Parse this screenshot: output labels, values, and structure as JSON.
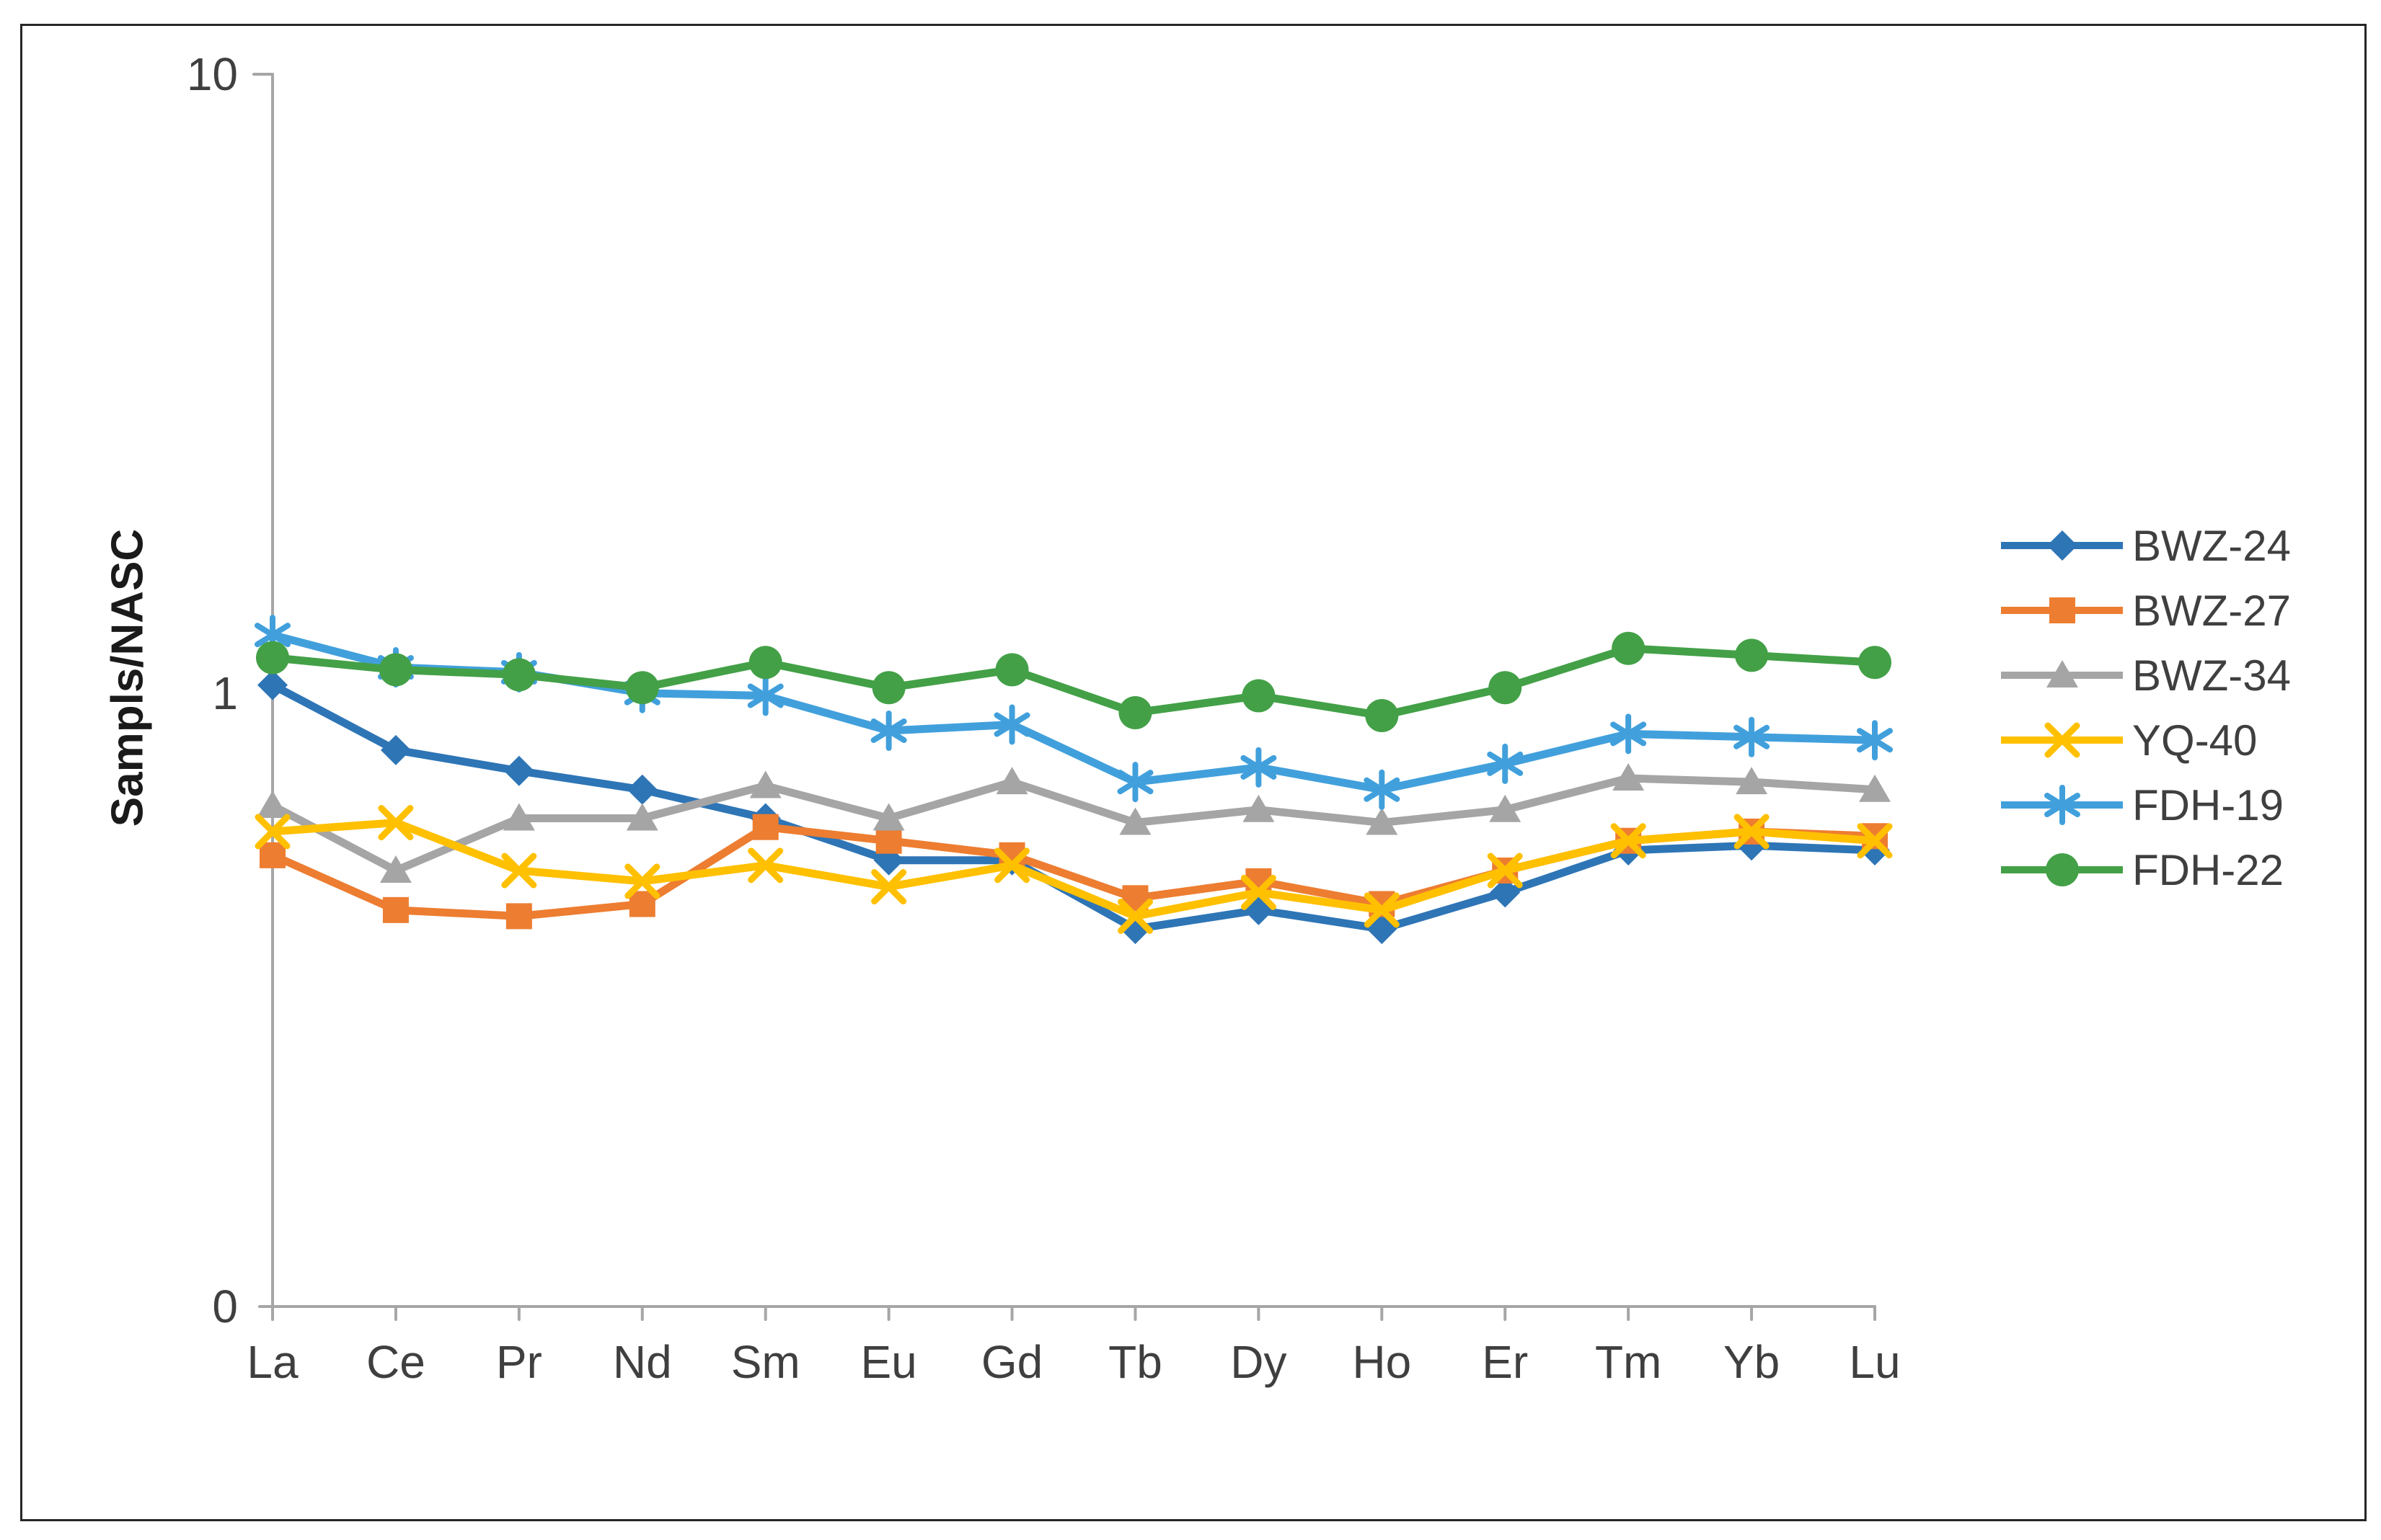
{
  "figure": {
    "y_axis_title": "Sampls/NASC",
    "y_ticks": [
      "10",
      "1",
      "0"
    ],
    "axis_color": "#a6a6a6",
    "border_color": "#262626"
  },
  "chart_data": {
    "type": "line",
    "title": "",
    "xlabel": "",
    "ylabel": "Sampls/NASC",
    "y_scale": "log",
    "y_tick_labels": [
      "10",
      "1",
      "0"
    ],
    "y_range": [
      0.1,
      10
    ],
    "grid": false,
    "legend_position": "right",
    "categories": [
      "La",
      "Ce",
      "Pr",
      "Nd",
      "Sm",
      "Eu",
      "Gd",
      "Tb",
      "Dy",
      "Ho",
      "Er",
      "Tm",
      "Yb",
      "Lu"
    ],
    "series": [
      {
        "name": "BWZ-24",
        "color": "#2E75B6",
        "marker": "diamond",
        "values": [
          1.02,
          0.8,
          0.74,
          0.69,
          0.62,
          0.53,
          0.53,
          0.41,
          0.44,
          0.41,
          0.47,
          0.55,
          0.56,
          0.55
        ]
      },
      {
        "name": "BWZ-27",
        "color": "#ED7D31",
        "marker": "square",
        "values": [
          0.54,
          0.44,
          0.43,
          0.45,
          0.6,
          0.57,
          0.54,
          0.46,
          0.49,
          0.45,
          0.51,
          0.57,
          0.59,
          0.58
        ]
      },
      {
        "name": "BWZ-34",
        "color": "#A5A5A5",
        "marker": "triangle",
        "values": [
          0.65,
          0.51,
          0.62,
          0.62,
          0.7,
          0.62,
          0.71,
          0.61,
          0.64,
          0.61,
          0.64,
          0.72,
          0.71,
          0.69
        ]
      },
      {
        "name": "YQ-40",
        "color": "#FFC000",
        "marker": "x",
        "values": [
          0.59,
          0.61,
          0.51,
          0.49,
          0.52,
          0.48,
          0.52,
          0.43,
          0.47,
          0.44,
          0.51,
          0.57,
          0.59,
          0.57
        ]
      },
      {
        "name": "FDH-19",
        "color": "#41A0DC",
        "marker": "asterisk",
        "values": [
          1.23,
          1.09,
          1.07,
          0.99,
          0.98,
          0.86,
          0.88,
          0.71,
          0.75,
          0.69,
          0.76,
          0.85,
          0.84,
          0.83
        ]
      },
      {
        "name": "FDH-22",
        "color": "#43A047",
        "marker": "circle",
        "values": [
          1.13,
          1.08,
          1.06,
          1.01,
          1.11,
          1.01,
          1.08,
          0.92,
          0.98,
          0.91,
          1.01,
          1.17,
          1.14,
          1.11
        ]
      }
    ]
  }
}
